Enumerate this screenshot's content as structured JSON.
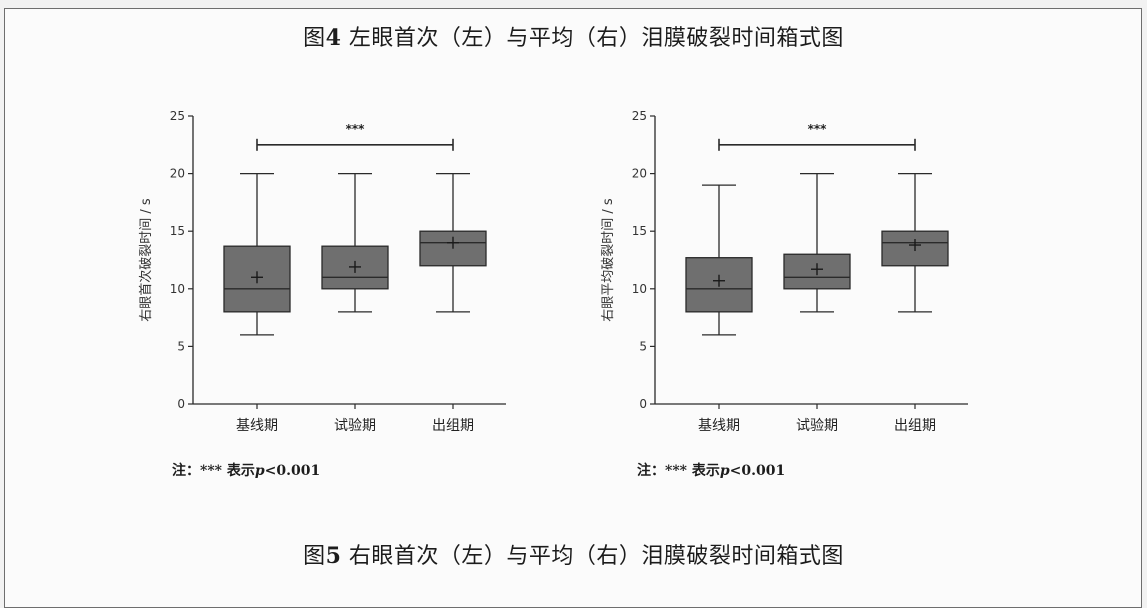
{
  "figure": {
    "title_top_prefix": "图",
    "title_top_num": "4",
    "title_top_rest": " 左眼首次（左）与平均（右）泪膜破裂时间箱式图",
    "title_bottom_prefix": "图",
    "title_bottom_num": "5",
    "title_bottom_rest": " 右眼首次（左）与平均（右）泪膜破裂时间箱式图"
  },
  "notes": {
    "left_prefix": "注：*** 表示",
    "left_p": "p",
    "left_suffix": "<0.001",
    "right_prefix": "注：*** 表示",
    "right_p": "p",
    "right_suffix": "<0.001"
  },
  "colors": {
    "box_fill": "#6f6f6f",
    "line": "#2a2a2a"
  },
  "chart_data": [
    {
      "type": "box",
      "ylabel": "右眼首次破裂时间 / s",
      "ylim": [
        0,
        25
      ],
      "yticks": [
        0,
        5,
        10,
        15,
        20,
        25
      ],
      "categories": [
        "基线期",
        "试验期",
        "出组期"
      ],
      "boxes": [
        {
          "min": 6,
          "q1": 8,
          "median": 10,
          "q3": 13.7,
          "max": 20,
          "mean": 11.0
        },
        {
          "min": 8,
          "q1": 10,
          "median": 11,
          "q3": 13.7,
          "max": 20,
          "mean": 11.9
        },
        {
          "min": 8,
          "q1": 12,
          "median": 14,
          "q3": 15,
          "max": 20,
          "mean": 14.0
        }
      ],
      "significance": {
        "from": 0,
        "to": 2,
        "label": "***",
        "y": 22.5
      }
    },
    {
      "type": "box",
      "ylabel": "右眼平均破裂时间 / s",
      "ylim": [
        0,
        25
      ],
      "yticks": [
        0,
        5,
        10,
        15,
        20,
        25
      ],
      "categories": [
        "基线期",
        "试验期",
        "出组期"
      ],
      "boxes": [
        {
          "min": 6,
          "q1": 8,
          "median": 10,
          "q3": 12.7,
          "max": 19,
          "mean": 10.7
        },
        {
          "min": 8,
          "q1": 10,
          "median": 11,
          "q3": 13,
          "max": 20,
          "mean": 11.7
        },
        {
          "min": 8,
          "q1": 12,
          "median": 14,
          "q3": 15,
          "max": 20,
          "mean": 13.8
        }
      ],
      "significance": {
        "from": 0,
        "to": 2,
        "label": "***",
        "y": 22.5
      }
    }
  ]
}
